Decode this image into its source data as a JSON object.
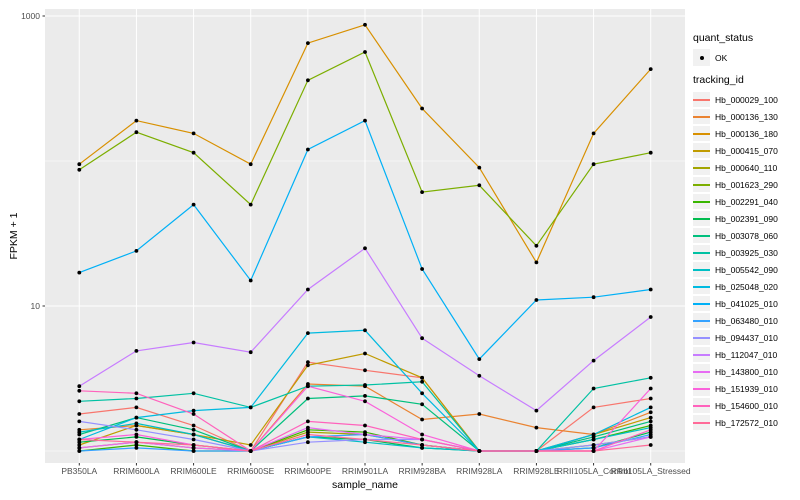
{
  "window": {
    "kind": "plot-viewer",
    "description": "ggplot-style multi-series line chart on log scale"
  },
  "colors": {
    "panel_background": "#EBEBEB",
    "gridline": "#FFFFFF",
    "tick_text": "#4D4D4D",
    "tick_mark": "#333333",
    "point": "#000000",
    "legend_key_background": "#F1F1F1"
  },
  "legend": {
    "quant_status": {
      "title": "quant_status",
      "items": [
        {
          "label": "OK",
          "symbol": "filled-point",
          "color": "#000000"
        }
      ]
    },
    "tracking_id": {
      "title": "tracking_id"
    }
  },
  "chart_data": {
    "type": "line",
    "title": "",
    "xlabel": "sample_name",
    "ylabel": "FPKM + 1",
    "y_scale": "log10",
    "ylim": [
      0.85,
      1150
    ],
    "grid": "on",
    "legend_position": "right",
    "y_ticks": [
      {
        "label": "10",
        "value": 10
      },
      {
        "label": "1000",
        "value": 1000
      }
    ],
    "y_minor_gridlines": [
      1,
      100
    ],
    "categories": [
      "PB350LA",
      "RRIM600LA",
      "RRIM600LE",
      "RRIM600SE",
      "RRIM600PE",
      "RRIM901LA",
      "RRIM928BA",
      "RRIM928LA",
      "RRIM928LE",
      "RRII105LA_Control",
      "RRII105LA_Stressed"
    ],
    "series": [
      {
        "name": "Hb_000029_100",
        "color": "#F8766D",
        "values": [
          1.8,
          2.0,
          1.5,
          1.0,
          4.1,
          3.6,
          3.2,
          1.0,
          1.0,
          2.0,
          2.3
        ]
      },
      {
        "name": "Hb_000136_130",
        "color": "#EA8331",
        "values": [
          1.4,
          1.5,
          1.3,
          1.0,
          2.9,
          2.8,
          1.65,
          1.8,
          1.45,
          1.3,
          1.85
        ]
      },
      {
        "name": "Hb_000136_180",
        "color": "#D89000",
        "values": [
          95,
          190,
          155,
          95,
          650,
          870,
          230,
          90,
          20,
          155,
          430
        ]
      },
      {
        "name": "Hb_000415_070",
        "color": "#C09B00",
        "values": [
          1.1,
          1.5,
          1.3,
          1.1,
          3.9,
          4.7,
          3.2,
          1.0,
          1.0,
          1.3,
          1.7
        ]
      },
      {
        "name": "Hb_000640_110",
        "color": "#A3A500",
        "values": [
          1.05,
          1.15,
          1.05,
          1.0,
          1.35,
          1.3,
          1.1,
          1.0,
          1.0,
          1.1,
          1.25
        ]
      },
      {
        "name": "Hb_001623_290",
        "color": "#7CAE00",
        "values": [
          87,
          158,
          114,
          50,
          360,
          565,
          61,
          68,
          26,
          95,
          114
        ]
      },
      {
        "name": "Hb_002291_040",
        "color": "#39B600",
        "values": [
          1.0,
          1.1,
          1.0,
          1.0,
          1.4,
          1.35,
          1.1,
          1.0,
          1.0,
          1.2,
          1.5
        ]
      },
      {
        "name": "Hb_002391_090",
        "color": "#00BB4E",
        "values": [
          1.15,
          1.25,
          1.1,
          1.0,
          1.25,
          1.2,
          1.05,
          1.0,
          1.0,
          1.05,
          1.35
        ]
      },
      {
        "name": "Hb_003078_060",
        "color": "#00BF7D",
        "values": [
          1.3,
          1.7,
          1.4,
          1.0,
          2.3,
          2.4,
          2.1,
          1.0,
          1.0,
          1.25,
          1.6
        ]
      },
      {
        "name": "Hb_003925_030",
        "color": "#00C1A3",
        "values": [
          2.2,
          2.3,
          2.5,
          2.0,
          2.8,
          2.85,
          3.0,
          1.0,
          1.0,
          2.7,
          3.2
        ]
      },
      {
        "name": "Hb_005542_090",
        "color": "#00BFC4",
        "values": [
          1.35,
          1.55,
          1.3,
          1.0,
          1.25,
          1.15,
          1.05,
          1.0,
          1.0,
          1.2,
          1.45
        ]
      },
      {
        "name": "Hb_025048_020",
        "color": "#00BAE0",
        "values": [
          1.2,
          1.7,
          1.9,
          2.0,
          6.5,
          6.8,
          2.5,
          1.0,
          1.0,
          1.3,
          2.0
        ]
      },
      {
        "name": "Hb_041025_010",
        "color": "#00B0F6",
        "values": [
          17,
          24,
          50,
          15,
          120,
          190,
          18,
          4.3,
          11,
          11.5,
          13
        ]
      },
      {
        "name": "Hb_063480_010",
        "color": "#35A2FF",
        "values": [
          1.0,
          1.05,
          1.0,
          1.0,
          1.25,
          1.3,
          1.1,
          1.0,
          1.0,
          1.05,
          1.3
        ]
      },
      {
        "name": "Hb_094437_010",
        "color": "#9590FF",
        "values": [
          1.6,
          1.4,
          1.2,
          1.0,
          1.15,
          1.2,
          1.2,
          1.0,
          1.0,
          1.1,
          1.25
        ]
      },
      {
        "name": "Hb_112047_010",
        "color": "#C77CFF",
        "values": [
          2.8,
          4.9,
          5.6,
          4.8,
          13,
          25,
          6.0,
          3.3,
          1.9,
          4.2,
          8.4
        ]
      },
      {
        "name": "Hb_143800_010",
        "color": "#E76BF3",
        "values": [
          1.05,
          1.15,
          1.05,
          1.0,
          1.45,
          1.3,
          1.2,
          1.0,
          1.0,
          1.0,
          1.25
        ]
      },
      {
        "name": "Hb_151939_010",
        "color": "#FA62DB",
        "values": [
          1.2,
          1.3,
          1.1,
          1.0,
          2.8,
          2.2,
          1.3,
          1.0,
          1.0,
          1.0,
          2.7
        ]
      },
      {
        "name": "Hb_154600_010",
        "color": "#FF62BC",
        "values": [
          2.6,
          2.5,
          1.8,
          1.0,
          1.6,
          1.5,
          1.2,
          1.0,
          1.0,
          1.0,
          1.4
        ]
      },
      {
        "name": "Hb_172572_010",
        "color": "#FF6A98",
        "values": [
          1.2,
          1.15,
          1.1,
          1.0,
          1.3,
          1.2,
          1.1,
          1.0,
          1.0,
          1.0,
          1.1
        ]
      }
    ]
  }
}
